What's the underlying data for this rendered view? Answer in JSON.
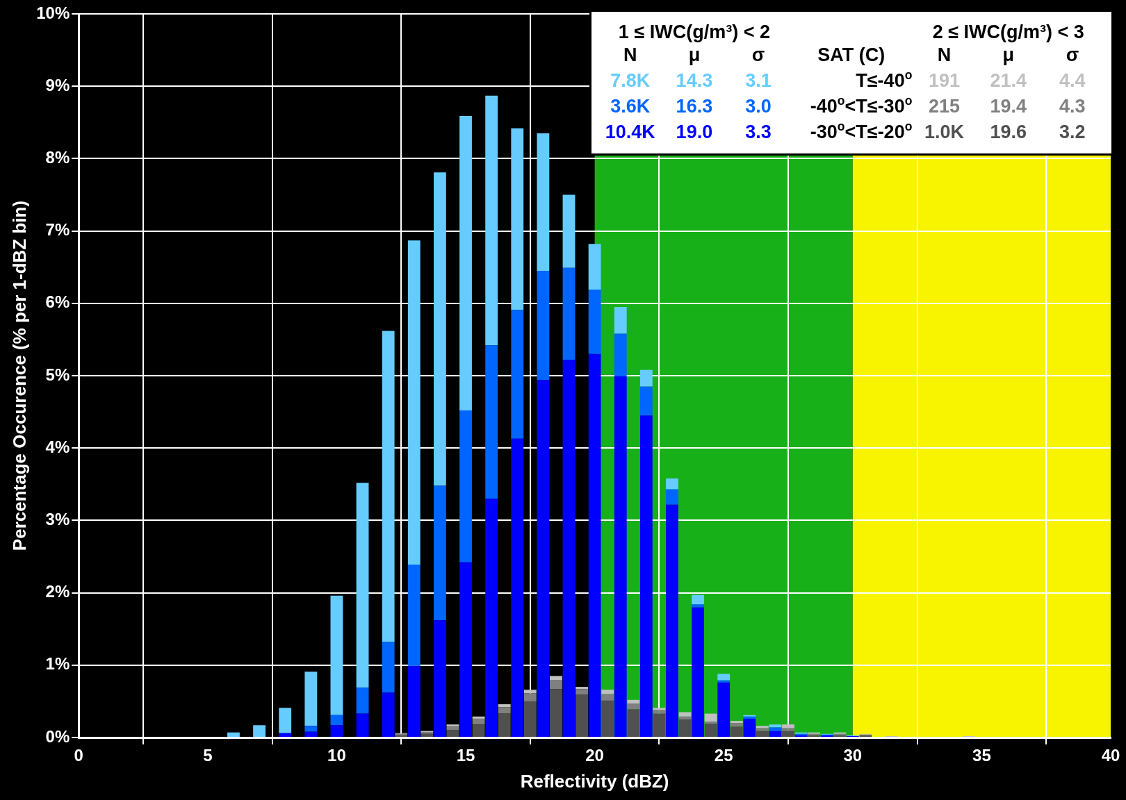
{
  "chart_data": {
    "type": "bar",
    "stacked": true,
    "xlabel": "Reflectivity (dBZ)",
    "ylabel": "Percentage Occurence (% per 1-dBZ bin)",
    "xlim": [
      0,
      40
    ],
    "xticks": [
      0,
      5,
      10,
      15,
      20,
      25,
      30,
      35,
      40
    ],
    "ylim": [
      0,
      10
    ],
    "yticks": [
      {
        "value": 0,
        "label": "0%"
      },
      {
        "value": 1,
        "label": "1%"
      },
      {
        "value": 2,
        "label": "2%"
      },
      {
        "value": 3,
        "label": "3%"
      },
      {
        "value": 4,
        "label": "4%"
      },
      {
        "value": 5,
        "label": "5%"
      },
      {
        "value": 6,
        "label": "6%"
      },
      {
        "value": 7,
        "label": "7%"
      },
      {
        "value": 8,
        "label": "8%"
      },
      {
        "value": 9,
        "label": "9%"
      },
      {
        "value": 10,
        "label": "10%"
      }
    ],
    "grid": true,
    "legend": false,
    "bands": [
      {
        "axis": "x",
        "from": 20,
        "to": 30,
        "label": null,
        "color": "#18b018"
      },
      {
        "axis": "x",
        "from": 30,
        "to": 40,
        "label": null,
        "color": "#f8f400"
      }
    ],
    "x": [
      6,
      6.5,
      7,
      7.5,
      8,
      8.5,
      9,
      9.5,
      10,
      10.5,
      11,
      11.5,
      12,
      12.5,
      13,
      13.5,
      14,
      14.5,
      15,
      15.5,
      16,
      16.5,
      17,
      17.5,
      18,
      18.5,
      19,
      19.5,
      20,
      20.5,
      21,
      21.5,
      22,
      22.5,
      23,
      23.5,
      24,
      24.5,
      25,
      25.5,
      26,
      26.5,
      27,
      27.5,
      28,
      28.5,
      29,
      29.5,
      30,
      30.5,
      31,
      31.5,
      32,
      32.5,
      33,
      33.5,
      34,
      34.5
    ],
    "series": [
      {
        "color": "#0000ff",
        "values": [
          null,
          null,
          null,
          null,
          0.06,
          null,
          0.08,
          null,
          0.17,
          null,
          0.33,
          null,
          0.62,
          null,
          0.99,
          null,
          1.62,
          null,
          2.42,
          null,
          3.3,
          null,
          4.13,
          null,
          4.94,
          null,
          5.22,
          null,
          5.3,
          null,
          4.99,
          null,
          4.45,
          null,
          3.22,
          null,
          1.8,
          null,
          0.76,
          null,
          0.26,
          null,
          0.09,
          null,
          0.03,
          null,
          0.03,
          null,
          0.02,
          null,
          null,
          null,
          null,
          null,
          null,
          null,
          null,
          null
        ]
      },
      {
        "color": "#0066ff",
        "values": [
          null,
          null,
          null,
          null,
          null,
          null,
          0.08,
          null,
          0.14,
          null,
          0.36,
          null,
          0.7,
          null,
          1.4,
          null,
          1.86,
          null,
          2.1,
          null,
          2.12,
          null,
          1.78,
          null,
          1.51,
          null,
          1.27,
          null,
          0.89,
          null,
          0.59,
          null,
          0.4,
          null,
          0.21,
          null,
          0.04,
          null,
          0.03,
          null,
          0.03,
          null,
          0.05,
          null,
          0.02,
          null,
          0.01,
          null,
          null,
          null,
          null,
          null,
          null,
          null,
          null,
          null,
          null,
          null
        ]
      },
      {
        "color": "#66ccff",
        "values": [
          0.07,
          null,
          0.17,
          null,
          0.35,
          null,
          0.75,
          null,
          1.65,
          null,
          2.83,
          null,
          4.3,
          null,
          4.48,
          null,
          4.33,
          null,
          4.07,
          null,
          3.45,
          null,
          2.51,
          null,
          1.9,
          null,
          1.01,
          null,
          0.63,
          null,
          0.37,
          null,
          0.23,
          null,
          0.15,
          null,
          0.13,
          null,
          0.09,
          null,
          0.02,
          null,
          0.04,
          null,
          0.02,
          null,
          0.01,
          null,
          0.01,
          null,
          null,
          null,
          null,
          null,
          null,
          null,
          null,
          null
        ]
      },
      {
        "color": "#505050",
        "values": [
          null,
          null,
          null,
          null,
          null,
          null,
          null,
          null,
          null,
          null,
          null,
          null,
          null,
          0.03,
          null,
          0.05,
          null,
          0.1,
          null,
          0.18,
          null,
          0.33,
          null,
          0.5,
          null,
          0.67,
          null,
          0.59,
          null,
          0.51,
          null,
          0.39,
          null,
          0.33,
          null,
          0.25,
          null,
          0.19,
          null,
          0.15,
          null,
          0.09,
          null,
          0.09,
          null,
          0.03,
          null,
          0.03,
          null,
          0.03,
          null,
          null,
          null,
          null,
          null,
          null,
          null,
          null
        ]
      },
      {
        "color": "#808080",
        "values": [
          null,
          null,
          null,
          null,
          null,
          null,
          null,
          null,
          null,
          null,
          null,
          null,
          null,
          0.02,
          null,
          0.02,
          null,
          0.05,
          null,
          0.08,
          null,
          0.09,
          null,
          0.11,
          null,
          0.12,
          null,
          0.08,
          null,
          0.09,
          null,
          0.08,
          null,
          0.05,
          null,
          0.04,
          null,
          0.03,
          null,
          0.05,
          null,
          0.04,
          null,
          0.04,
          null,
          0.02,
          null,
          0.02,
          null,
          0.01,
          null,
          null,
          null,
          null,
          null,
          null,
          null,
          null
        ]
      },
      {
        "color": "#c0c0c0",
        "values": [
          null,
          null,
          null,
          null,
          null,
          null,
          null,
          null,
          null,
          null,
          null,
          null,
          null,
          0.01,
          null,
          0.02,
          null,
          0.03,
          null,
          0.03,
          null,
          0.04,
          null,
          0.05,
          null,
          0.06,
          null,
          0.03,
          null,
          0.06,
          null,
          0.05,
          null,
          0.03,
          null,
          0.06,
          null,
          0.11,
          null,
          0.03,
          null,
          0.03,
          null,
          0.05,
          null,
          0.02,
          null,
          0.02,
          null,
          0.01,
          null,
          0.02,
          null,
          null,
          null,
          null,
          null,
          0.02
        ]
      }
    ],
    "annotations": [
      "1 ≤ IWC(g/m³) < 2",
      "2 ≤ IWC(g/m³) < 3",
      "N",
      "μ",
      "σ",
      "SAT (C)",
      "N",
      "μ",
      "σ",
      "7.8K",
      "14.3",
      "3.1",
      "T≤-40$^{o}$",
      "191",
      "21.4",
      "4.4",
      "3.6K",
      "16.3",
      "3.0",
      "-40$^{o}$<T≤-30$^{o}$",
      "215",
      "19.4",
      "4.3",
      "10.4K",
      "19.0",
      "3.3",
      "-30$^{o}$<T≤-20$^{o}$",
      "1.0K",
      "19.6",
      "3.2"
    ]
  }
}
